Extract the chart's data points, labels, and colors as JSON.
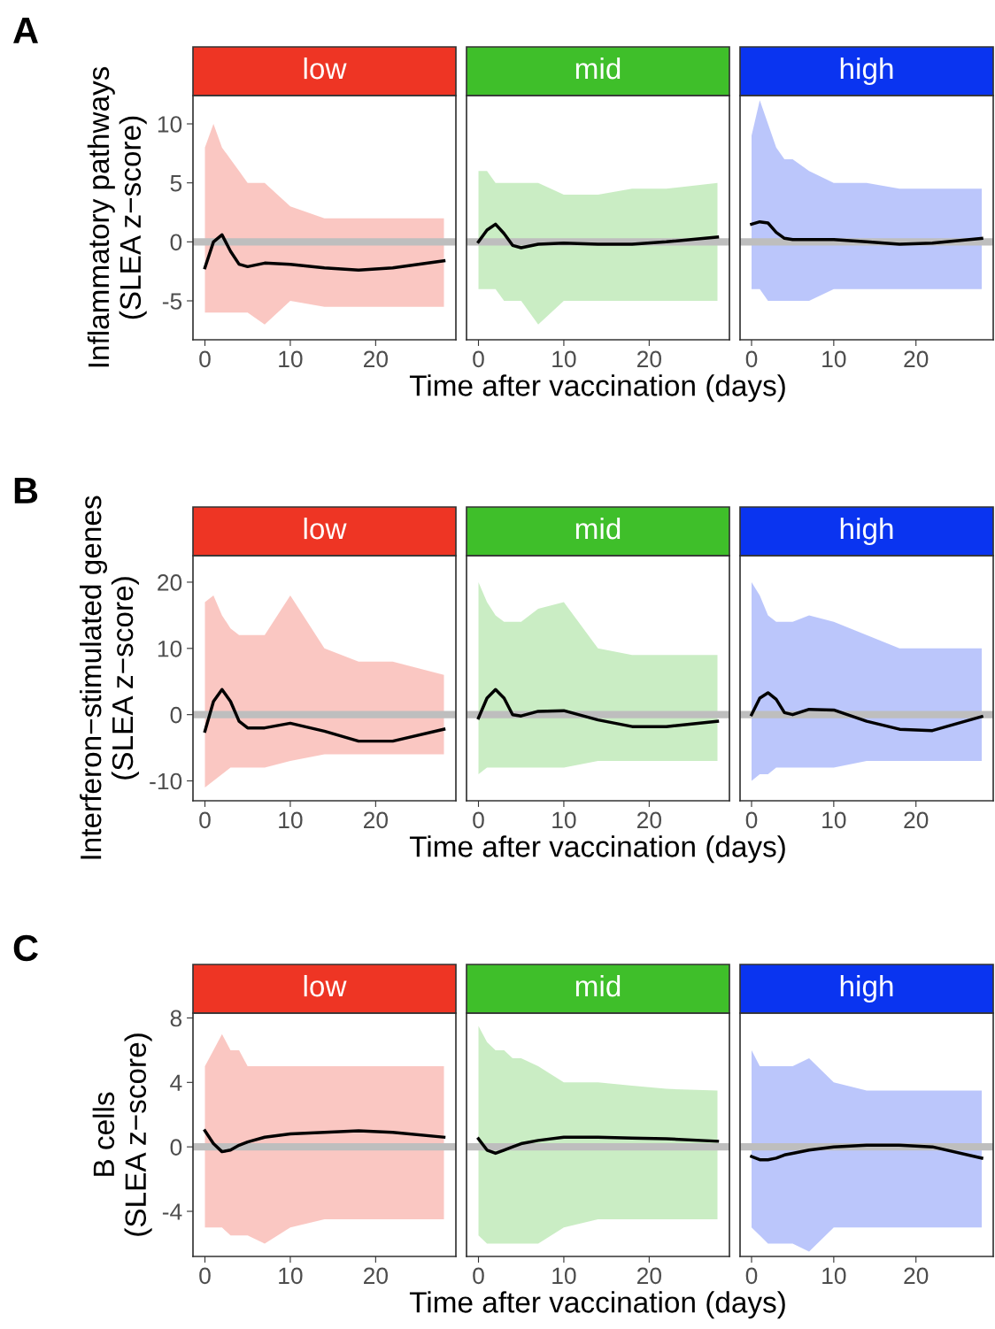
{
  "chart_data": [
    {
      "type": "line",
      "title": "low",
      "ylabel": "Inflammatory pathways\n(SLEA z−score)",
      "annotations": [
        "A"
      ],
      "colors": [
        "#ee3524"
      ],
      "x": [
        0,
        1,
        2,
        3,
        4,
        5,
        7,
        10,
        14,
        18,
        22,
        28
      ],
      "xlim": [
        -1.4,
        29.4
      ],
      "xticks": [
        0,
        10,
        20
      ],
      "ylim": [
        -8.3,
        12.4
      ],
      "yticks": [
        -5,
        0,
        5,
        10
      ],
      "ref_lines": [
        {
          "axis": "y",
          "value": 0,
          "color": "#bebebe"
        }
      ],
      "series": [
        {
          "color": "#000000",
          "values": [
            -2.2,
            0,
            0.6,
            -0.8,
            -1.9,
            -2.1,
            -1.8,
            -1.9,
            -2.2,
            -2.4,
            -2.2,
            -1.6
          ],
          "upper": [
            8,
            10,
            8,
            7,
            6,
            5,
            5,
            3,
            2,
            2,
            2,
            2
          ],
          "lower": [
            -6,
            -6,
            -6,
            -6,
            -6,
            -6,
            -7,
            -5,
            -5.5,
            -5.5,
            -5.5,
            -5.5
          ]
        }
      ]
    },
    {
      "type": "line",
      "title": "mid",
      "xlabel": "Time after vaccination (days)",
      "tick_labels": "x",
      "colors": [
        "#3fbf2a"
      ],
      "x": [
        0,
        1,
        2,
        3,
        4,
        5,
        7,
        10,
        14,
        18,
        22,
        28
      ],
      "xlim": [
        -1.4,
        29.4
      ],
      "xticks": [
        0,
        10,
        20
      ],
      "ylim": [
        -8.3,
        12.4
      ],
      "ref_lines": [
        {
          "axis": "y",
          "value": 0,
          "color": "#bebebe"
        }
      ],
      "series": [
        {
          "color": "#000000",
          "values": [
            0,
            1,
            1.5,
            0.7,
            -0.3,
            -0.5,
            -0.2,
            -0.1,
            -0.2,
            -0.2,
            0,
            0.4
          ],
          "upper": [
            6,
            6,
            5,
            5,
            5,
            5,
            5,
            4,
            4,
            4.5,
            4.5,
            5
          ],
          "lower": [
            -4,
            -4,
            -4,
            -5,
            -5,
            -5,
            -7,
            -5,
            -5,
            -5,
            -5,
            -5
          ]
        }
      ]
    },
    {
      "type": "line",
      "title": "high",
      "tick_labels": "x",
      "colors": [
        "#0a34f0"
      ],
      "x": [
        0,
        1,
        2,
        3,
        4,
        5,
        7,
        10,
        14,
        18,
        22,
        28
      ],
      "xlim": [
        -1.4,
        29.4
      ],
      "xticks": [
        0,
        10,
        20
      ],
      "ylim": [
        -8.3,
        12.4
      ],
      "ref_lines": [
        {
          "axis": "y",
          "value": 0,
          "color": "#bebebe"
        }
      ],
      "series": [
        {
          "color": "#000000",
          "values": [
            1.5,
            1.7,
            1.6,
            0.8,
            0.3,
            0.2,
            0.2,
            0.2,
            0,
            -0.2,
            -0.1,
            0.3
          ],
          "upper": [
            9,
            12,
            10,
            8,
            7,
            7,
            6,
            5,
            5,
            4.5,
            4.5,
            4.5
          ],
          "lower": [
            -4,
            -4,
            -5,
            -5,
            -5,
            -5,
            -5,
            -4,
            -4,
            -4,
            -4,
            -4
          ]
        }
      ]
    },
    {
      "type": "line",
      "title": "low",
      "ylabel": "Interferon−stimulated genes\n(SLEA z−score)",
      "annotations": [
        "B"
      ],
      "colors": [
        "#ee3524"
      ],
      "x": [
        0,
        1,
        2,
        3,
        4,
        5,
        7,
        10,
        14,
        18,
        22,
        28
      ],
      "xlim": [
        -1.4,
        29.4
      ],
      "xticks": [
        0,
        10,
        20
      ],
      "ylim": [
        -13,
        24
      ],
      "yticks": [
        -10,
        0,
        10,
        20
      ],
      "ref_lines": [
        {
          "axis": "y",
          "value": 0,
          "color": "#bebebe"
        }
      ],
      "series": [
        {
          "color": "#000000",
          "values": [
            -2.5,
            2,
            3.8,
            2,
            -1,
            -2,
            -2,
            -1.3,
            -2.5,
            -4,
            -4,
            -2.2
          ],
          "upper": [
            17,
            18,
            15,
            13,
            12,
            12,
            12,
            18,
            10,
            8,
            8,
            6
          ],
          "lower": [
            -11,
            -10,
            -9,
            -8,
            -8,
            -8,
            -8,
            -7,
            -6,
            -6,
            -6,
            -6
          ]
        }
      ]
    },
    {
      "type": "line",
      "title": "mid",
      "xlabel": "Time after vaccination (days)",
      "tick_labels": "x",
      "colors": [
        "#3fbf2a"
      ],
      "x": [
        0,
        1,
        2,
        3,
        4,
        5,
        7,
        10,
        14,
        18,
        22,
        28
      ],
      "xlim": [
        -1.4,
        29.4
      ],
      "xticks": [
        0,
        10,
        20
      ],
      "ylim": [
        -13,
        24
      ],
      "ref_lines": [
        {
          "axis": "y",
          "value": 0,
          "color": "#bebebe"
        }
      ],
      "series": [
        {
          "color": "#000000",
          "values": [
            -0.5,
            2.5,
            3.8,
            2.5,
            0,
            -0.2,
            0.5,
            0.6,
            -0.8,
            -1.8,
            -1.8,
            -1
          ],
          "upper": [
            20,
            17,
            15,
            14,
            14,
            14,
            16,
            17,
            10,
            9,
            9,
            9
          ],
          "lower": [
            -9,
            -8,
            -8,
            -8,
            -8,
            -8,
            -8,
            -8,
            -7,
            -7,
            -7,
            -7
          ]
        }
      ]
    },
    {
      "type": "line",
      "title": "high",
      "tick_labels": "x",
      "colors": [
        "#0a34f0"
      ],
      "x": [
        0,
        1,
        2,
        3,
        4,
        5,
        7,
        10,
        14,
        18,
        22,
        28
      ],
      "xlim": [
        -1.4,
        29.4
      ],
      "xticks": [
        0,
        10,
        20
      ],
      "ylim": [
        -13,
        24
      ],
      "ref_lines": [
        {
          "axis": "y",
          "value": 0,
          "color": "#bebebe"
        }
      ],
      "series": [
        {
          "color": "#000000",
          "values": [
            0,
            2.5,
            3.3,
            2.3,
            0.3,
            0,
            0.8,
            0.7,
            -1,
            -2.2,
            -2.4,
            -0.3
          ],
          "upper": [
            20,
            18,
            15,
            14,
            14,
            14,
            15,
            14,
            12,
            10,
            10,
            10
          ],
          "lower": [
            -10,
            -9,
            -9,
            -8,
            -8,
            -8,
            -8,
            -8,
            -7,
            -7,
            -7,
            -7
          ]
        }
      ]
    },
    {
      "type": "line",
      "title": "low",
      "ylabel": "B cells\n(SLEA z−score)",
      "annotations": [
        "C"
      ],
      "colors": [
        "#ee3524"
      ],
      "x": [
        0,
        1,
        2,
        3,
        4,
        5,
        7,
        10,
        14,
        18,
        22,
        28
      ],
      "xlim": [
        -1.4,
        29.4
      ],
      "xticks": [
        0,
        10,
        20
      ],
      "ylim": [
        -6.8,
        8.3
      ],
      "yticks": [
        -4,
        0,
        4,
        8
      ],
      "ref_lines": [
        {
          "axis": "y",
          "value": 0,
          "color": "#bebebe"
        }
      ],
      "series": [
        {
          "color": "#000000",
          "values": [
            1,
            0.2,
            -0.3,
            -0.2,
            0.1,
            0.3,
            0.6,
            0.8,
            0.9,
            1,
            0.9,
            0.6
          ],
          "upper": [
            5,
            6,
            7,
            6,
            6,
            5,
            5,
            5,
            5,
            5,
            5,
            5
          ],
          "lower": [
            -5,
            -5,
            -5,
            -5.5,
            -5.5,
            -5.5,
            -6,
            -5,
            -4.5,
            -4.5,
            -4.5,
            -4.5
          ]
        }
      ]
    },
    {
      "type": "line",
      "title": "mid",
      "xlabel": "Time after vaccination (days)",
      "tick_labels": "x",
      "colors": [
        "#3fbf2a"
      ],
      "x": [
        0,
        1,
        2,
        3,
        4,
        5,
        7,
        10,
        14,
        18,
        22,
        28
      ],
      "xlim": [
        -1.4,
        29.4
      ],
      "xticks": [
        0,
        10,
        20
      ],
      "ylim": [
        -6.8,
        8.3
      ],
      "ref_lines": [
        {
          "axis": "y",
          "value": 0,
          "color": "#bebebe"
        }
      ],
      "series": [
        {
          "color": "#000000",
          "values": [
            0.5,
            -0.2,
            -0.4,
            -0.2,
            0,
            0.2,
            0.4,
            0.6,
            0.6,
            0.55,
            0.5,
            0.35
          ],
          "upper": [
            7.5,
            6.5,
            6,
            6,
            5.5,
            5.5,
            5,
            4,
            4,
            3.8,
            3.6,
            3.5
          ],
          "lower": [
            -5.5,
            -6,
            -6,
            -6,
            -6,
            -6,
            -6,
            -5,
            -4.5,
            -4.5,
            -4.5,
            -4.5
          ]
        }
      ]
    },
    {
      "type": "line",
      "title": "high",
      "tick_labels": "x",
      "colors": [
        "#0a34f0"
      ],
      "x": [
        0,
        1,
        2,
        3,
        4,
        5,
        7,
        10,
        14,
        18,
        22,
        28
      ],
      "xlim": [
        -1.4,
        29.4
      ],
      "xticks": [
        0,
        10,
        20
      ],
      "ylim": [
        -6.8,
        8.3
      ],
      "ref_lines": [
        {
          "axis": "y",
          "value": 0,
          "color": "#bebebe"
        }
      ],
      "series": [
        {
          "color": "#000000",
          "values": [
            -0.6,
            -0.8,
            -0.8,
            -0.7,
            -0.5,
            -0.4,
            -0.2,
            0,
            0.1,
            0.1,
            0,
            -0.7
          ],
          "upper": [
            6,
            5,
            5,
            5,
            5,
            5,
            5.5,
            4,
            3.5,
            3.5,
            3.5,
            3.5
          ],
          "lower": [
            -5,
            -5.5,
            -6,
            -6,
            -6,
            -6,
            -6.5,
            -5,
            -5,
            -5,
            -5,
            -5
          ]
        }
      ]
    }
  ]
}
